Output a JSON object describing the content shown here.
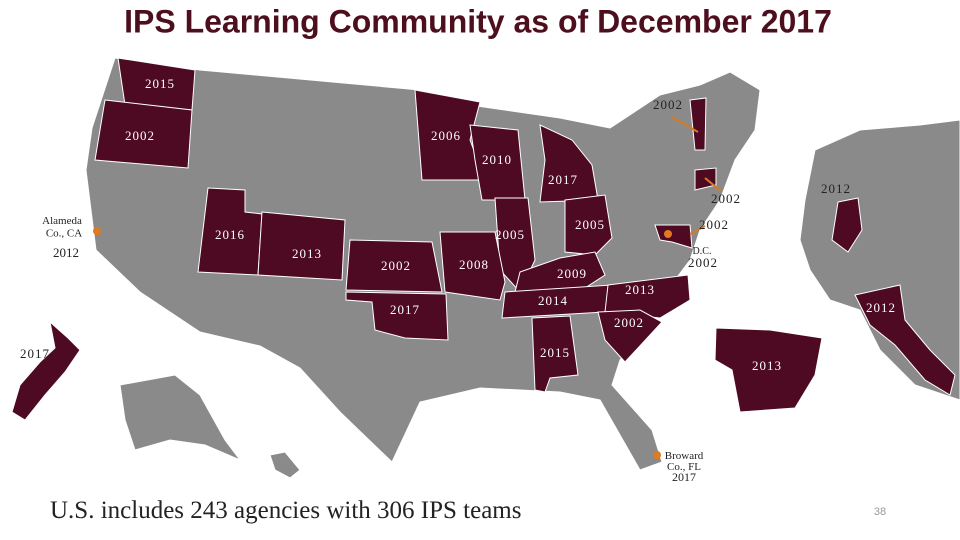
{
  "title": "IPS Learning Community as of December 2017",
  "map_labels": [
    "2015",
    "2002",
    "2016",
    "2013",
    "2002",
    "2017",
    "2006",
    "2010",
    "2017",
    "2005",
    "2008",
    "2005",
    "2009",
    "2014",
    "2013",
    "2002",
    "2015",
    "2002",
    "2002",
    "2002",
    "2002",
    "2017",
    "2012",
    "2012",
    "2013"
  ],
  "callouts": {
    "alameda": {
      "line1": "Alameda",
      "line2": "Co., CA",
      "year": "2012"
    },
    "dc": {
      "name": "D.C."
    },
    "broward": {
      "line1": "Broward",
      "line2": "Co., FL",
      "year": "2017"
    }
  },
  "footer": "U.S. includes 243 agencies with 306 IPS teams",
  "page_number": "38"
}
